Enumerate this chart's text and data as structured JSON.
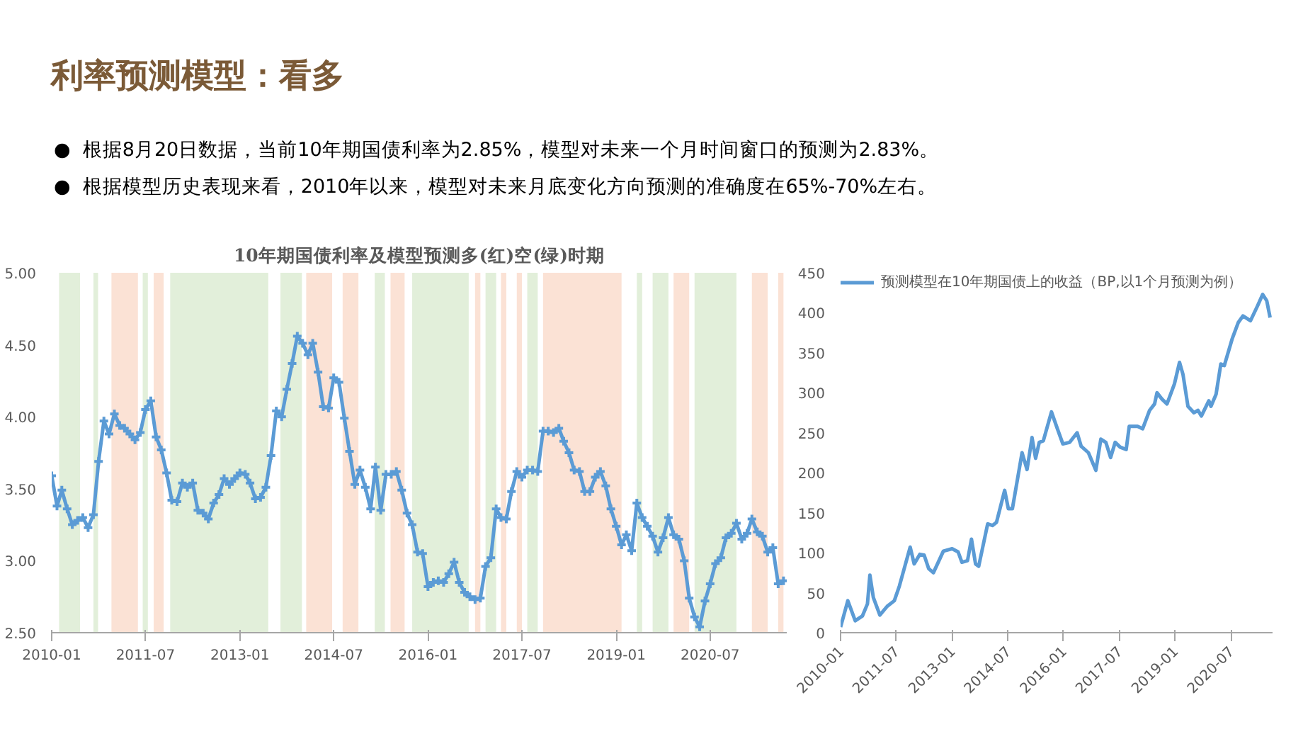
{
  "chart_data": [
    {
      "type": "line",
      "title": "10年期国债利率及模型预测多(红)空(绿)时期",
      "color": "#5b9bd5",
      "marker": "cross",
      "annotations": [
        "利率预测模型：看多",
        "●  根据8月20日数据，当前10年期国债利率为2.85%，模型对未来一个月时间窗口的预测为2.83%。",
        "●  根据模型历史表现来看，2010年以来，模型对未来月底变化方向预测的准确度在65%-70%左右。"
      ],
      "x": [
        "2010-01",
        "2010-02",
        "2010-03",
        "2010-04",
        "2010-05",
        "2010-06",
        "2010-07",
        "2010-08",
        "2010-09",
        "2010-10",
        "2010-11",
        "2010-12",
        "2011-01",
        "2011-02",
        "2011-03",
        "2011-04",
        "2011-05",
        "2011-06",
        "2011-07",
        "2011-08",
        "2011-09",
        "2011-10",
        "2011-11",
        "2011-12",
        "2012-01",
        "2012-02",
        "2012-03",
        "2012-04",
        "2012-05",
        "2012-06",
        "2012-07",
        "2012-08",
        "2012-09",
        "2012-10",
        "2012-11",
        "2012-12",
        "2013-01",
        "2013-02",
        "2013-03",
        "2013-04",
        "2013-05",
        "2013-06",
        "2013-07",
        "2013-08",
        "2013-09",
        "2013-10",
        "2013-11",
        "2013-12",
        "2014-01",
        "2014-02",
        "2014-03",
        "2014-04",
        "2014-05",
        "2014-06",
        "2014-07",
        "2014-08",
        "2014-09",
        "2014-10",
        "2014-11",
        "2014-12",
        "2015-01",
        "2015-02",
        "2015-03",
        "2015-04",
        "2015-05",
        "2015-06",
        "2015-07",
        "2015-08",
        "2015-09",
        "2015-10",
        "2015-11",
        "2015-12",
        "2016-01",
        "2016-02",
        "2016-03",
        "2016-04",
        "2016-05",
        "2016-06",
        "2016-07",
        "2016-08",
        "2016-09",
        "2016-10",
        "2016-11",
        "2016-12",
        "2017-01",
        "2017-02",
        "2017-03",
        "2017-04",
        "2017-05",
        "2017-06",
        "2017-07",
        "2017-08",
        "2017-09",
        "2017-10",
        "2017-11",
        "2017-12",
        "2018-01",
        "2018-02",
        "2018-03",
        "2018-04",
        "2018-05",
        "2018-06",
        "2018-07",
        "2018-08",
        "2018-09",
        "2018-10",
        "2018-11",
        "2018-12",
        "2019-01",
        "2019-02",
        "2019-03",
        "2019-04",
        "2019-05",
        "2019-06",
        "2019-07",
        "2019-08",
        "2019-09",
        "2019-10",
        "2019-11",
        "2019-12",
        "2020-01",
        "2020-02",
        "2020-03",
        "2020-04",
        "2020-05",
        "2020-06",
        "2020-07",
        "2020-08",
        "2020-09",
        "2020-10",
        "2020-11",
        "2020-12",
        "2021-01",
        "2021-02",
        "2021-03",
        "2021-04",
        "2021-05",
        "2021-06",
        "2021-07",
        "2021-08",
        "2021-09"
      ],
      "values": [
        3.59,
        3.38,
        3.49,
        3.36,
        3.25,
        3.28,
        3.3,
        3.23,
        3.32,
        3.69,
        3.97,
        3.88,
        4.02,
        3.94,
        3.92,
        3.88,
        3.84,
        3.89,
        4.05,
        4.11,
        3.86,
        3.77,
        3.61,
        3.42,
        3.41,
        3.54,
        3.51,
        3.54,
        3.35,
        3.33,
        3.29,
        3.4,
        3.46,
        3.57,
        3.53,
        3.57,
        3.61,
        3.6,
        3.54,
        3.43,
        3.44,
        3.51,
        3.73,
        4.04,
        4.0,
        4.19,
        4.37,
        4.56,
        4.51,
        4.43,
        4.51,
        4.31,
        4.07,
        4.06,
        4.27,
        4.24,
        3.99,
        3.76,
        3.53,
        3.63,
        3.51,
        3.36,
        3.65,
        3.35,
        3.6,
        3.6,
        3.62,
        3.49,
        3.33,
        3.25,
        3.06,
        3.05,
        2.82,
        2.85,
        2.86,
        2.85,
        2.91,
        2.99,
        2.85,
        2.78,
        2.75,
        2.73,
        2.74,
        2.96,
        3.02,
        3.36,
        3.3,
        3.29,
        3.48,
        3.62,
        3.58,
        3.63,
        3.63,
        3.62,
        3.9,
        3.9,
        3.89,
        3.92,
        3.83,
        3.75,
        3.63,
        3.62,
        3.48,
        3.48,
        3.58,
        3.62,
        3.52,
        3.36,
        3.24,
        3.11,
        3.18,
        3.07,
        3.4,
        3.3,
        3.24,
        3.17,
        3.06,
        3.16,
        3.3,
        3.18,
        3.15,
        3.0,
        2.74,
        2.61,
        2.54,
        2.72,
        2.84,
        2.98,
        3.02,
        3.16,
        3.19,
        3.26,
        3.15,
        3.19,
        3.29,
        3.2,
        3.17,
        3.06,
        3.09,
        2.84,
        2.86
      ],
      "xlim": [
        "2010-01",
        "2021-09-20"
      ],
      "xticks": [
        "2010-01",
        "2011-07",
        "2013-01",
        "2014-07",
        "2016-01",
        "2017-07",
        "2019-01",
        "2020-07"
      ],
      "ylim": [
        2.5,
        5.0
      ],
      "yticks": [
        {
          "value": 2.5,
          "label": "2.50"
        },
        {
          "value": 3.0,
          "label": "3.00"
        },
        {
          "value": 3.5,
          "label": "3.50"
        },
        {
          "value": 4.0,
          "label": "4.00"
        },
        {
          "value": 4.5,
          "label": "4.50"
        },
        {
          "value": 5.0,
          "label": "5.00"
        }
      ],
      "bands": [
        {
          "axis": "x",
          "from": "2010-02-13",
          "to": "2010-06-15",
          "color": "#e2efda"
        },
        {
          "axis": "x",
          "from": "2010-09-01",
          "to": "2010-09-28",
          "color": "#e2efda"
        },
        {
          "axis": "x",
          "from": "2010-12-15",
          "to": "2011-05-18",
          "color": "#fbe2d5"
        },
        {
          "axis": "x",
          "from": "2011-06-15",
          "to": "2011-07-15",
          "color": "#e2efda"
        },
        {
          "axis": "x",
          "from": "2011-08-18",
          "to": "2011-10-15",
          "color": "#fbe2d5"
        },
        {
          "axis": "x",
          "from": "2011-11-22",
          "to": "2013-06-15",
          "color": "#e2efda"
        },
        {
          "axis": "x",
          "from": "2013-08-25",
          "to": "2013-12-28",
          "color": "#e2efda"
        },
        {
          "axis": "x",
          "from": "2014-01-22",
          "to": "2014-06-22",
          "color": "#fbe2d5"
        },
        {
          "axis": "x",
          "from": "2014-08-22",
          "to": "2014-11-22",
          "color": "#fbe2d5"
        },
        {
          "axis": "x",
          "from": "2015-02-25",
          "to": "2015-04-25",
          "color": "#e2efda"
        },
        {
          "axis": "x",
          "from": "2015-05-28",
          "to": "2015-08-18",
          "color": "#fbe2d5"
        },
        {
          "axis": "x",
          "from": "2015-10-01",
          "to": "2016-08-25",
          "color": "#e2efda"
        },
        {
          "axis": "x",
          "from": "2016-10-01",
          "to": "2016-11-01",
          "color": "#fbe2d5"
        },
        {
          "axis": "x",
          "from": "2016-12-01",
          "to": "2017-02-01",
          "color": "#e2efda"
        },
        {
          "axis": "x",
          "from": "2017-03-01",
          "to": "2017-04-01",
          "color": "#fbe2d5"
        },
        {
          "axis": "x",
          "from": "2017-06-01",
          "to": "2017-07-01",
          "color": "#fbe2d5"
        },
        {
          "axis": "x",
          "from": "2017-08-01",
          "to": "2017-10-01",
          "color": "#e2efda"
        },
        {
          "axis": "x",
          "from": "2017-11-01",
          "to": "2019-02-01",
          "color": "#fbe2d5"
        },
        {
          "axis": "x",
          "from": "2019-05-01",
          "to": "2019-06-01",
          "color": "#e2efda"
        },
        {
          "axis": "x",
          "from": "2019-08-01",
          "to": "2019-11-01",
          "color": "#e2efda"
        },
        {
          "axis": "x",
          "from": "2019-12-01",
          "to": "2020-03-01",
          "color": "#fbe2d5"
        },
        {
          "axis": "x",
          "from": "2020-04-01",
          "to": "2020-12-01",
          "color": "#e2efda"
        },
        {
          "axis": "x",
          "from": "2021-03-01",
          "to": "2021-06-01",
          "color": "#fbe2d5"
        },
        {
          "axis": "x",
          "from": "2021-08-01",
          "to": "2021-09-01",
          "color": "#fbe2d5"
        }
      ]
    },
    {
      "type": "line",
      "legend": "top",
      "xlim": [
        "2010-01",
        "2021-08-15"
      ],
      "xticks": [
        "2010-01",
        "2011-07",
        "2013-01",
        "2014-07",
        "2016-01",
        "2017-07",
        "2019-01",
        "2020-07"
      ],
      "ylim": [
        0,
        450
      ],
      "yticks": [
        0,
        50,
        100,
        150,
        200,
        250,
        300,
        350,
        400,
        450
      ],
      "series": [
        {
          "name": "预测模型在10年期国债上的收益（BP,以1个月预测为例）",
          "color": "#5b9bd5",
          "x": [
            "2010-01-01",
            "2010-03-13",
            "2010-05-25",
            "2010-08-04",
            "2010-09-22",
            "2010-10-16",
            "2010-11-19",
            "2011-01-22",
            "2011-04-04",
            "2011-06-13",
            "2011-08-01",
            "2011-10-01",
            "2011-11-16",
            "2011-12-25",
            "2012-02-19",
            "2012-04-01",
            "2012-05-16",
            "2012-07-01",
            "2012-10-07",
            "2013-01-01",
            "2013-03-01",
            "2013-04-07",
            "2013-06-01",
            "2013-07-10",
            "2013-08-19",
            "2013-09-19",
            "2013-12-16",
            "2014-02-01",
            "2014-03-13",
            "2014-06-01",
            "2014-07-07",
            "2014-08-16",
            "2014-11-19",
            "2015-01-07",
            "2015-02-25",
            "2015-04-01",
            "2015-05-07",
            "2015-06-16",
            "2015-09-04",
            "2015-11-01",
            "2015-12-25",
            "2016-03-01",
            "2016-05-13",
            "2016-06-22",
            "2016-09-01",
            "2016-11-13",
            "2017-01-01",
            "2017-02-19",
            "2017-04-07",
            "2017-05-22",
            "2017-07-10",
            "2017-09-07",
            "2017-10-07",
            "2017-12-28",
            "2018-02-16",
            "2018-04-25",
            "2018-06-13",
            "2018-07-07",
            "2018-08-25",
            "2018-10-13",
            "2018-12-25",
            "2019-02-13",
            "2019-03-19",
            "2019-05-07",
            "2019-07-04",
            "2019-08-13",
            "2019-09-16",
            "2019-11-28",
            "2019-12-19",
            "2020-02-07",
            "2020-03-25",
            "2020-04-28",
            "2020-07-16",
            "2020-09-13",
            "2020-10-28",
            "2020-12-16",
            "2021-01-10",
            "2021-03-22",
            "2021-05-10",
            "2021-06-19",
            "2021-07-22"
          ],
          "values": [
            7,
            40,
            15,
            21,
            36,
            72,
            44,
            22,
            33,
            40,
            58,
            86,
            107,
            86,
            98,
            97,
            80,
            75,
            102,
            105,
            101,
            88,
            90,
            117,
            86,
            83,
            136,
            134,
            138,
            178,
            155,
            155,
            225,
            204,
            244,
            218,
            238,
            240,
            276,
            255,
            236,
            238,
            250,
            233,
            225,
            203,
            242,
            238,
            219,
            238,
            232,
            229,
            258,
            258,
            255,
            278,
            286,
            300,
            292,
            286,
            311,
            338,
            323,
            283,
            275,
            278,
            271,
            290,
            283,
            298,
            336,
            334,
            368,
            388,
            396,
            392,
            390,
            409,
            423,
            415,
            394
          ]
        }
      ]
    }
  ]
}
